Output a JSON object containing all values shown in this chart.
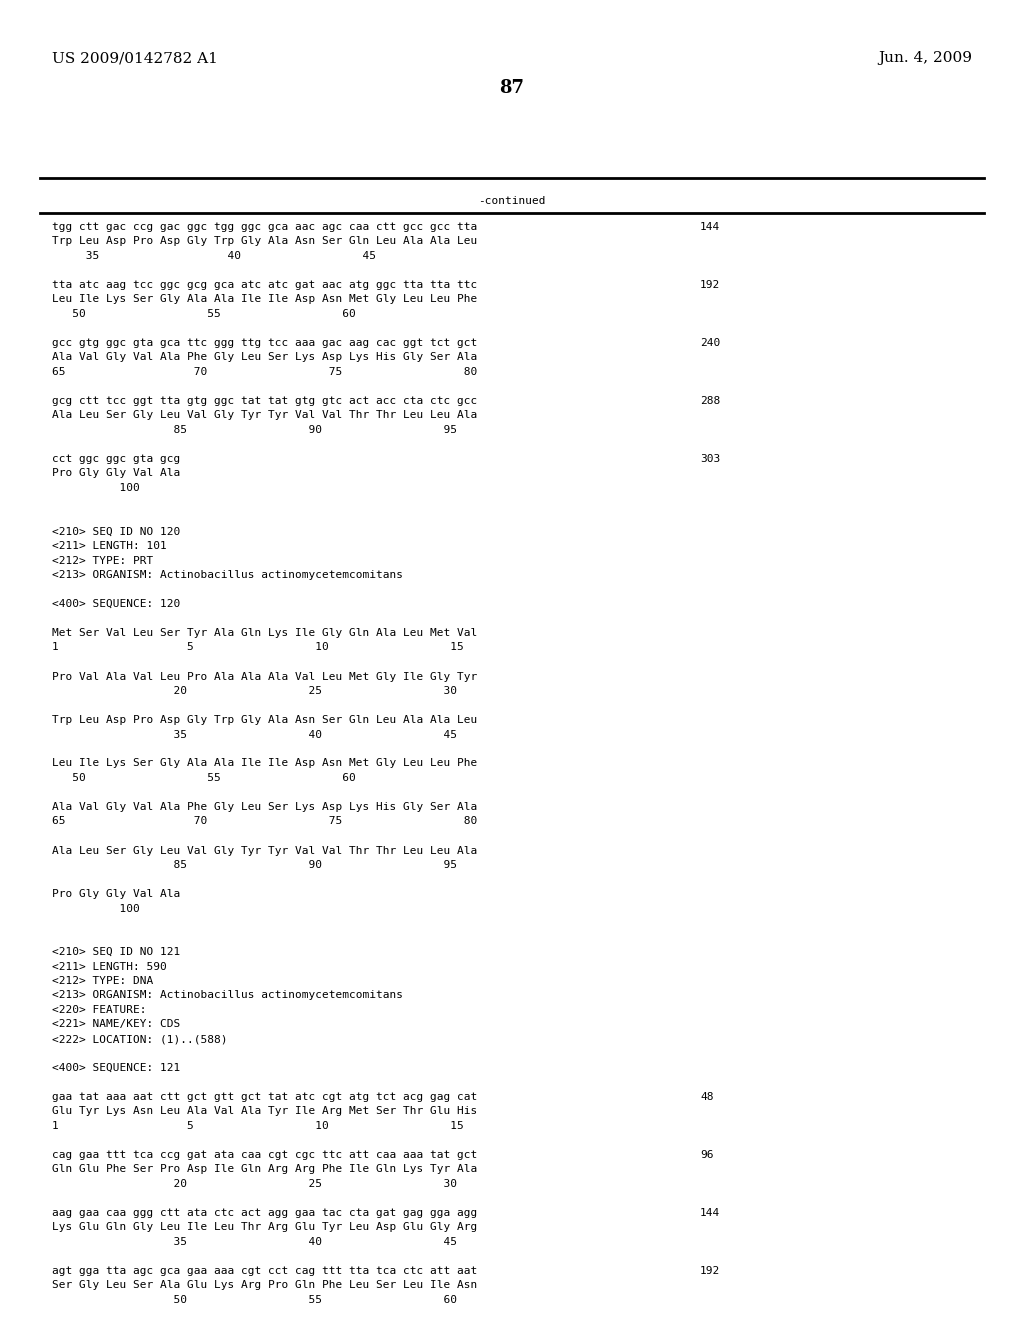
{
  "header_left": "US 2009/0142782 A1",
  "header_right": "Jun. 4, 2009",
  "page_number": "87",
  "continued_label": "-continued",
  "background_color": "#ffffff",
  "text_color": "#000000",
  "font_size": 8.0,
  "mono_font": "DejaVu Sans Mono",
  "serif_font": "DejaVu Serif",
  "content_lines": [
    {
      "text": "tgg ctt gac ccg gac ggc tgg ggc gca aac agc caa ctt gcc gcc tta",
      "num": "144"
    },
    {
      "text": "Trp Leu Asp Pro Asp Gly Trp Gly Ala Asn Ser Gln Leu Ala Ala Leu",
      "num": ""
    },
    {
      "text": "     35                   40                  45",
      "num": ""
    },
    {
      "text": "",
      "num": ""
    },
    {
      "text": "tta atc aag tcc ggc gcg gca atc atc gat aac atg ggc tta tta ttc",
      "num": "192"
    },
    {
      "text": "Leu Ile Lys Ser Gly Ala Ala Ile Ile Asp Asn Met Gly Leu Leu Phe",
      "num": ""
    },
    {
      "text": "   50                  55                  60",
      "num": ""
    },
    {
      "text": "",
      "num": ""
    },
    {
      "text": "gcc gtg ggc gta gca ttc ggg ttg tcc aaa gac aag cac ggt tct gct",
      "num": "240"
    },
    {
      "text": "Ala Val Gly Val Ala Phe Gly Leu Ser Lys Asp Lys His Gly Ser Ala",
      "num": ""
    },
    {
      "text": "65                   70                  75                  80",
      "num": ""
    },
    {
      "text": "",
      "num": ""
    },
    {
      "text": "gcg ctt tcc ggt tta gtg ggc tat tat gtg gtc act acc cta ctc gcc",
      "num": "288"
    },
    {
      "text": "Ala Leu Ser Gly Leu Val Gly Tyr Tyr Val Val Thr Thr Leu Leu Ala",
      "num": ""
    },
    {
      "text": "                  85                  90                  95",
      "num": ""
    },
    {
      "text": "",
      "num": ""
    },
    {
      "text": "cct ggc ggc gta gcg",
      "num": "303"
    },
    {
      "text": "Pro Gly Gly Val Ala",
      "num": ""
    },
    {
      "text": "          100",
      "num": ""
    },
    {
      "text": "",
      "num": ""
    },
    {
      "text": "",
      "num": ""
    },
    {
      "text": "<210> SEQ ID NO 120",
      "num": ""
    },
    {
      "text": "<211> LENGTH: 101",
      "num": ""
    },
    {
      "text": "<212> TYPE: PRT",
      "num": ""
    },
    {
      "text": "<213> ORGANISM: Actinobacillus actinomycetemcomitans",
      "num": ""
    },
    {
      "text": "",
      "num": ""
    },
    {
      "text": "<400> SEQUENCE: 120",
      "num": ""
    },
    {
      "text": "",
      "num": ""
    },
    {
      "text": "Met Ser Val Leu Ser Tyr Ala Gln Lys Ile Gly Gln Ala Leu Met Val",
      "num": ""
    },
    {
      "text": "1                   5                  10                  15",
      "num": ""
    },
    {
      "text": "",
      "num": ""
    },
    {
      "text": "Pro Val Ala Val Leu Pro Ala Ala Ala Val Leu Met Gly Ile Gly Tyr",
      "num": ""
    },
    {
      "text": "                  20                  25                  30",
      "num": ""
    },
    {
      "text": "",
      "num": ""
    },
    {
      "text": "Trp Leu Asp Pro Asp Gly Trp Gly Ala Asn Ser Gln Leu Ala Ala Leu",
      "num": ""
    },
    {
      "text": "                  35                  40                  45",
      "num": ""
    },
    {
      "text": "",
      "num": ""
    },
    {
      "text": "Leu Ile Lys Ser Gly Ala Ala Ile Ile Asp Asn Met Gly Leu Leu Phe",
      "num": ""
    },
    {
      "text": "   50                  55                  60",
      "num": ""
    },
    {
      "text": "",
      "num": ""
    },
    {
      "text": "Ala Val Gly Val Ala Phe Gly Leu Ser Lys Asp Lys His Gly Ser Ala",
      "num": ""
    },
    {
      "text": "65                   70                  75                  80",
      "num": ""
    },
    {
      "text": "",
      "num": ""
    },
    {
      "text": "Ala Leu Ser Gly Leu Val Gly Tyr Tyr Val Val Thr Thr Leu Leu Ala",
      "num": ""
    },
    {
      "text": "                  85                  90                  95",
      "num": ""
    },
    {
      "text": "",
      "num": ""
    },
    {
      "text": "Pro Gly Gly Val Ala",
      "num": ""
    },
    {
      "text": "          100",
      "num": ""
    },
    {
      "text": "",
      "num": ""
    },
    {
      "text": "",
      "num": ""
    },
    {
      "text": "<210> SEQ ID NO 121",
      "num": ""
    },
    {
      "text": "<211> LENGTH: 590",
      "num": ""
    },
    {
      "text": "<212> TYPE: DNA",
      "num": ""
    },
    {
      "text": "<213> ORGANISM: Actinobacillus actinomycetemcomitans",
      "num": ""
    },
    {
      "text": "<220> FEATURE:",
      "num": ""
    },
    {
      "text": "<221> NAME/KEY: CDS",
      "num": ""
    },
    {
      "text": "<222> LOCATION: (1)..(588)",
      "num": ""
    },
    {
      "text": "",
      "num": ""
    },
    {
      "text": "<400> SEQUENCE: 121",
      "num": ""
    },
    {
      "text": "",
      "num": ""
    },
    {
      "text": "gaa tat aaa aat ctt gct gtt gct tat atc cgt atg tct acg gag cat",
      "num": "48"
    },
    {
      "text": "Glu Tyr Lys Asn Leu Ala Val Ala Tyr Ile Arg Met Ser Thr Glu His",
      "num": ""
    },
    {
      "text": "1                   5                  10                  15",
      "num": ""
    },
    {
      "text": "",
      "num": ""
    },
    {
      "text": "cag gaa ttt tca ccg gat ata caa cgt cgc ttc att caa aaa tat gct",
      "num": "96"
    },
    {
      "text": "Gln Glu Phe Ser Pro Asp Ile Gln Arg Arg Phe Ile Gln Lys Tyr Ala",
      "num": ""
    },
    {
      "text": "                  20                  25                  30",
      "num": ""
    },
    {
      "text": "",
      "num": ""
    },
    {
      "text": "aag gaa caa ggg ctt ata ctc act agg gaa tac cta gat gag gga agg",
      "num": "144"
    },
    {
      "text": "Lys Glu Gln Gly Leu Ile Leu Thr Arg Glu Tyr Leu Asp Glu Gly Arg",
      "num": ""
    },
    {
      "text": "                  35                  40                  45",
      "num": ""
    },
    {
      "text": "",
      "num": ""
    },
    {
      "text": "agt gga tta agc gca gaa aaa cgt cct cag ttt tta tca ctc att aat",
      "num": "192"
    },
    {
      "text": "Ser Gly Leu Ser Ala Glu Lys Arg Pro Gln Phe Leu Ser Leu Ile Asn",
      "num": ""
    },
    {
      "text": "                  50                  55                  60",
      "num": ""
    }
  ]
}
